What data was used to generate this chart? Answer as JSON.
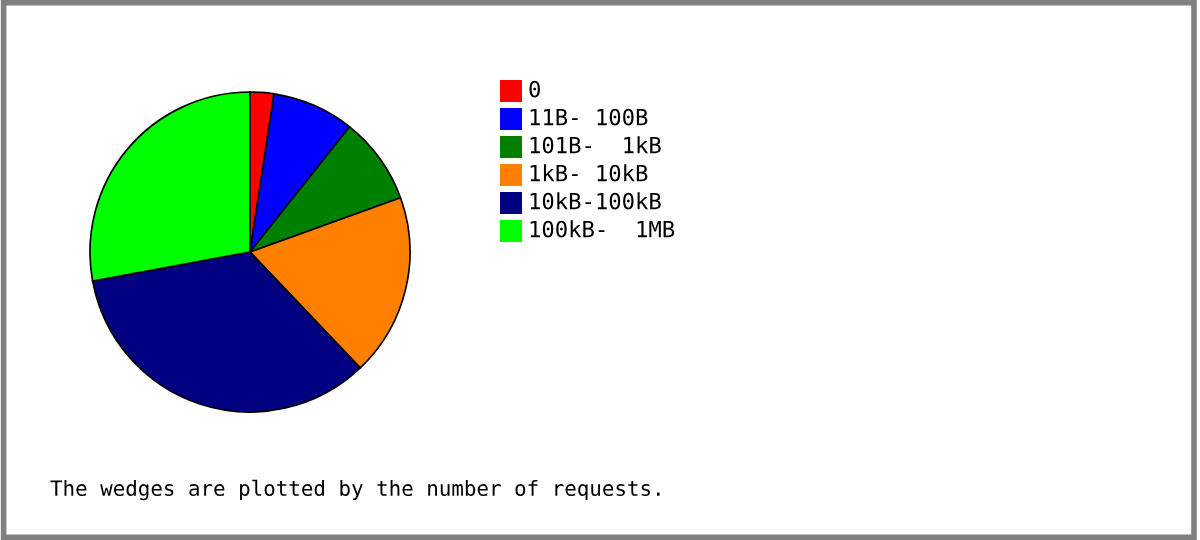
{
  "chart_data": {
    "type": "pie",
    "categories": [
      "0",
      "11B- 100B",
      "101B-  1kB",
      "1kB- 10kB",
      "10kB-100kB",
      "100kB-  1MB"
    ],
    "values": [
      2.4,
      8.3,
      8.8,
      18.4,
      34.2,
      27.9
    ],
    "colors": [
      "#ff0000",
      "#0000ff",
      "#008000",
      "#ff8000",
      "#000080",
      "#00ff00"
    ],
    "legend": "right",
    "annotations": [
      "The wedges are plotted by the number of requests."
    ]
  }
}
